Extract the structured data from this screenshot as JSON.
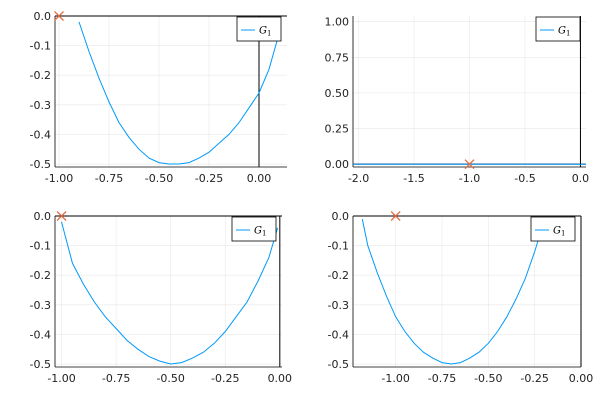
{
  "chart_data": [
    {
      "type": "line",
      "title": "",
      "xlabel": "",
      "ylabel": "",
      "xlim": [
        -1.02,
        0.14
      ],
      "ylim": [
        -0.51,
        0.0
      ],
      "xticks": [
        -1.0,
        -0.75,
        -0.5,
        -0.25,
        0.0
      ],
      "xtick_labels": [
        "-1.00",
        "-0.75",
        "-0.50",
        "-0.25",
        "0.00"
      ],
      "yticks": [
        0.0,
        -0.1,
        -0.2,
        -0.3,
        -0.4,
        -0.5
      ],
      "ytick_labels": [
        "0.0",
        "-0.1",
        "-0.2",
        "-0.3",
        "-0.4",
        "-0.5"
      ],
      "grid": true,
      "legend_position": "top-right",
      "series": [
        {
          "name": "G",
          "name_sub": "1",
          "color": "#009AFA",
          "x": [
            -0.9,
            -0.85,
            -0.8,
            -0.75,
            -0.7,
            -0.65,
            -0.6,
            -0.55,
            -0.5,
            -0.45,
            -0.4,
            -0.35,
            -0.3,
            -0.25,
            -0.2,
            -0.15,
            -0.1,
            -0.05,
            0.0,
            0.05,
            0.1
          ],
          "y": [
            -0.02,
            -0.12,
            -0.21,
            -0.29,
            -0.36,
            -0.41,
            -0.45,
            -0.48,
            -0.495,
            -0.5,
            -0.5,
            -0.495,
            -0.48,
            -0.46,
            -0.43,
            -0.4,
            -0.36,
            -0.31,
            -0.26,
            -0.18,
            -0.06
          ]
        }
      ],
      "markers": [
        {
          "x": -1.0,
          "y": 0.0,
          "symbol": "x",
          "color": "#E26F46"
        }
      ]
    },
    {
      "type": "line",
      "title": "",
      "xlabel": "",
      "ylabel": "",
      "xlim": [
        -2.05,
        0.05
      ],
      "ylim": [
        -0.02,
        1.04
      ],
      "xticks": [
        -2.0,
        -1.5,
        -1.0,
        -0.5,
        0.0
      ],
      "xtick_labels": [
        "-2.0",
        "-1.5",
        "-1.0",
        "-0.5",
        "0.0"
      ],
      "yticks": [
        0.0,
        0.25,
        0.5,
        0.75,
        1.0
      ],
      "ytick_labels": [
        "0.00",
        "0.25",
        "0.50",
        "0.75",
        "1.00"
      ],
      "grid": true,
      "legend_position": "top-right",
      "series": [
        {
          "name": "G",
          "name_sub": "1",
          "color": "#009AFA",
          "x": [
            -2.05,
            -1.5,
            -1.0,
            -0.5,
            0.05
          ],
          "y": [
            0.0,
            0.0,
            0.0,
            0.0,
            0.0
          ]
        }
      ],
      "markers": [
        {
          "x": -1.0,
          "y": 0.0,
          "symbol": "x",
          "color": "#E26F46"
        }
      ]
    },
    {
      "type": "line",
      "title": "",
      "xlabel": "",
      "ylabel": "",
      "xlim": [
        -1.03,
        0.01
      ],
      "ylim": [
        -0.51,
        0.0
      ],
      "xticks": [
        -1.0,
        -0.75,
        -0.5,
        -0.25,
        0.0
      ],
      "xtick_labels": [
        "-1.00",
        "-0.75",
        "-0.50",
        "-0.25",
        "0.00"
      ],
      "yticks": [
        0.0,
        -0.1,
        -0.2,
        -0.3,
        -0.4,
        -0.5
      ],
      "ytick_labels": [
        "0.0",
        "-0.1",
        "-0.2",
        "-0.3",
        "-0.4",
        "-0.5"
      ],
      "grid": true,
      "legend_position": "top-right",
      "series": [
        {
          "name": "G",
          "name_sub": "1",
          "color": "#009AFA",
          "x": [
            -1.0,
            -0.95,
            -0.9,
            -0.85,
            -0.8,
            -0.75,
            -0.7,
            -0.65,
            -0.6,
            -0.55,
            -0.5,
            -0.45,
            -0.4,
            -0.35,
            -0.3,
            -0.25,
            -0.2,
            -0.15,
            -0.1,
            -0.05,
            -0.01
          ],
          "y": [
            -0.02,
            -0.16,
            -0.23,
            -0.29,
            -0.34,
            -0.38,
            -0.42,
            -0.45,
            -0.475,
            -0.49,
            -0.5,
            -0.495,
            -0.48,
            -0.46,
            -0.43,
            -0.39,
            -0.34,
            -0.29,
            -0.22,
            -0.14,
            -0.04
          ]
        }
      ],
      "markers": [
        {
          "x": -1.0,
          "y": 0.0,
          "symbol": "x",
          "color": "#E26F46"
        }
      ]
    },
    {
      "type": "line",
      "title": "",
      "xlabel": "",
      "ylabel": "",
      "xlim": [
        -1.23,
        0.0
      ],
      "ylim": [
        -0.51,
        0.0
      ],
      "xticks": [
        -1.0,
        -0.75,
        -0.5,
        -0.25,
        0.0
      ],
      "xtick_labels": [
        "-1.00",
        "-0.75",
        "-0.50",
        "-0.25",
        "0.00"
      ],
      "yticks": [
        0.0,
        -0.1,
        -0.2,
        -0.3,
        -0.4,
        -0.5
      ],
      "ytick_labels": [
        "0.0",
        "-0.1",
        "-0.2",
        "-0.3",
        "-0.4",
        "-0.5"
      ],
      "grid": true,
      "legend_position": "top-right",
      "series": [
        {
          "name": "G",
          "name_sub": "1",
          "color": "#009AFA",
          "x": [
            -1.18,
            -1.15,
            -1.1,
            -1.05,
            -1.0,
            -0.95,
            -0.9,
            -0.85,
            -0.8,
            -0.75,
            -0.7,
            -0.65,
            -0.6,
            -0.55,
            -0.5,
            -0.45,
            -0.4,
            -0.35,
            -0.3,
            -0.25,
            -0.2
          ],
          "y": [
            -0.01,
            -0.1,
            -0.19,
            -0.27,
            -0.34,
            -0.39,
            -0.43,
            -0.46,
            -0.48,
            -0.495,
            -0.5,
            -0.495,
            -0.48,
            -0.46,
            -0.43,
            -0.39,
            -0.34,
            -0.28,
            -0.21,
            -0.12,
            -0.02
          ]
        }
      ],
      "markers": [
        {
          "x": -1.0,
          "y": 0.0,
          "symbol": "x",
          "color": "#E26F46"
        }
      ]
    }
  ]
}
